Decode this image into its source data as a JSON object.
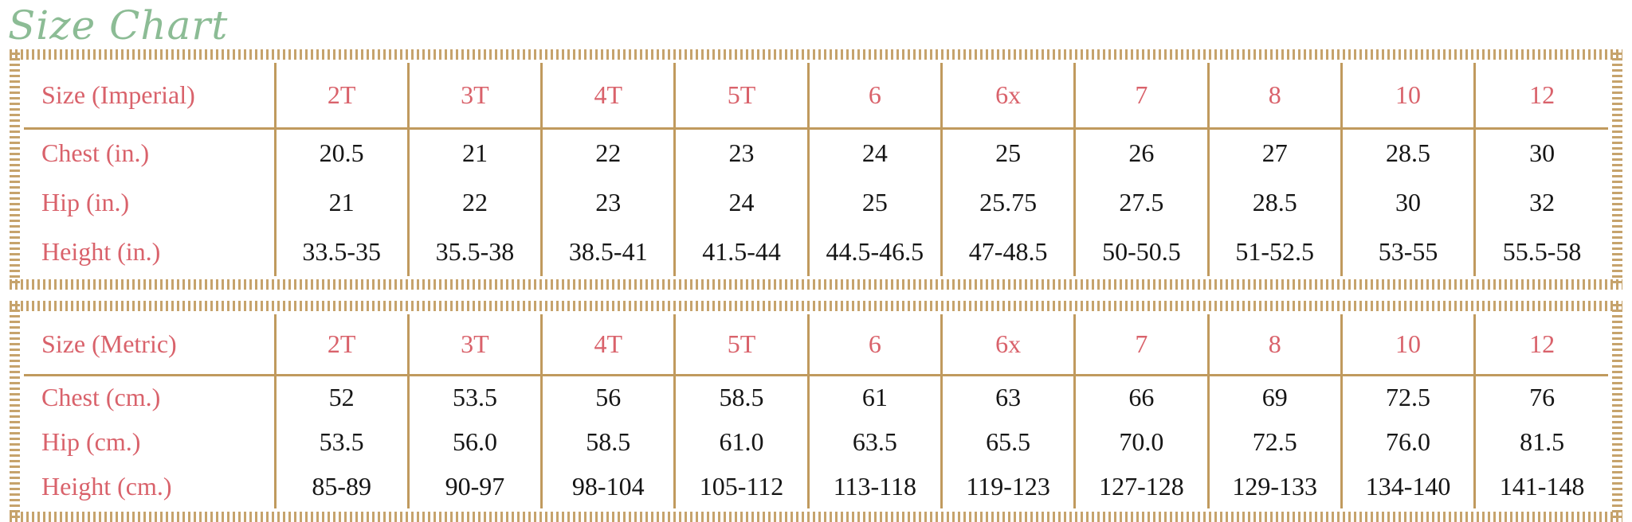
{
  "page": {
    "title": "Size Chart"
  },
  "colors": {
    "title_green": "#8cbc95",
    "label_red": "#d9626b",
    "border_tan": "#c09a5e",
    "value_ink": "#151515",
    "background": "#ffffff"
  },
  "chart_data": {
    "type": "table",
    "title": "Size Chart",
    "tables": [
      {
        "id": "imperial",
        "header_label": "Size (Imperial)",
        "sizes": [
          "2T",
          "3T",
          "4T",
          "5T",
          "6",
          "6x",
          "7",
          "8",
          "10",
          "12"
        ],
        "rows": [
          {
            "label": "Chest (in.)",
            "values": [
              "20.5",
              "21",
              "22",
              "23",
              "24",
              "25",
              "26",
              "27",
              "28.5",
              "30"
            ]
          },
          {
            "label": "Hip (in.)",
            "values": [
              "21",
              "22",
              "23",
              "24",
              "25",
              "25.75",
              "27.5",
              "28.5",
              "30",
              "32"
            ]
          },
          {
            "label": "Height (in.)",
            "values": [
              "33.5-35",
              "35.5-38",
              "38.5-41",
              "41.5-44",
              "44.5-46.5",
              "47-48.5",
              "50-50.5",
              "51-52.5",
              "53-55",
              "55.5-58"
            ]
          }
        ]
      },
      {
        "id": "metric",
        "header_label": "Size (Metric)",
        "sizes": [
          "2T",
          "3T",
          "4T",
          "5T",
          "6",
          "6x",
          "7",
          "8",
          "10",
          "12"
        ],
        "rows": [
          {
            "label": "Chest (cm.)",
            "values": [
              "52",
              "53.5",
              "56",
              "58.5",
              "61",
              "63",
              "66",
              "69",
              "72.5",
              "76"
            ]
          },
          {
            "label": "Hip (cm.)",
            "values": [
              "53.5",
              "56.0",
              "58.5",
              "61.0",
              "63.5",
              "65.5",
              "70.0",
              "72.5",
              "76.0",
              "81.5"
            ]
          },
          {
            "label": "Height (cm.)",
            "values": [
              "85-89",
              "90-97",
              "98-104",
              "105-112",
              "113-118",
              "119-123",
              "127-128",
              "129-133",
              "134-140",
              "141-148"
            ]
          }
        ]
      }
    ]
  }
}
